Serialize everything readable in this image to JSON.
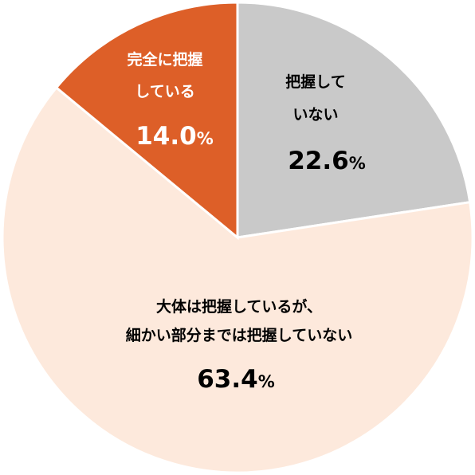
{
  "chart_data": {
    "type": "pie",
    "title": "",
    "start": "top",
    "direction": "clockwise",
    "slices": [
      {
        "label_lines": [
          "把握して",
          "いない"
        ],
        "value": 22.6,
        "value_text": "22.6",
        "unit": "%",
        "color": "#c9c9c9",
        "text_color": "#000000"
      },
      {
        "label_lines": [
          "大体は把握しているが、",
          "細かい部分までは把握していない"
        ],
        "value": 63.4,
        "value_text": "63.4",
        "unit": "%",
        "color": "#fde9dc",
        "text_color": "#000000"
      },
      {
        "label_lines": [
          "完全に把握",
          "している"
        ],
        "value": 14.0,
        "value_text": "14.0",
        "unit": "%",
        "color": "#dd5f28",
        "text_color": "#ffffff"
      }
    ]
  }
}
